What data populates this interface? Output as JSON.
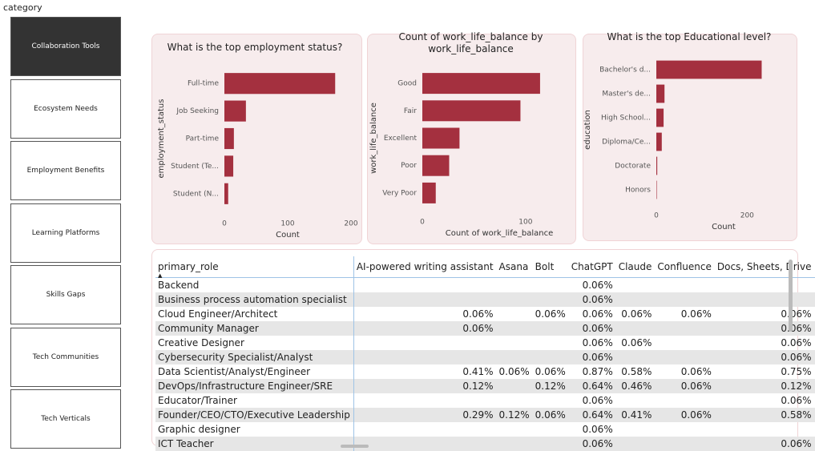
{
  "slicer": {
    "title": "category",
    "items": [
      "Collaboration Tools",
      "Ecosystem Needs",
      "Employment Benefits",
      "Learning Platforms",
      "Skills Gaps",
      "Tech Communities",
      "Tech Verticals"
    ],
    "selected": 0
  },
  "chart_data": [
    {
      "type": "bar",
      "orientation": "horizontal",
      "title": "What is the top employment status?",
      "x_label": "Count",
      "y_label": "employment_status",
      "categories": [
        "Full-time",
        "Job Seeking",
        "Part-time",
        "Student (Te...",
        "Student (N..."
      ],
      "values": [
        175,
        34,
        15,
        14,
        6
      ],
      "color": "#a4303f",
      "xlim": [
        0,
        200
      ],
      "xticks": [
        0,
        100,
        200
      ]
    },
    {
      "type": "bar",
      "orientation": "horizontal",
      "title": "Count of work_life_balance by work_life_balance",
      "x_label": "Count of work_life_balance",
      "y_label": "work_life_balance",
      "categories": [
        "Good",
        "Fair",
        "Excellent",
        "Poor",
        "Very Poor"
      ],
      "values": [
        114,
        95,
        36,
        26,
        13
      ],
      "color": "#a4303f",
      "xlim": [
        0,
        135
      ],
      "xticks": [
        0,
        100
      ]
    },
    {
      "type": "bar",
      "orientation": "horizontal",
      "title": "What is the top Educational level?",
      "x_label": "Count",
      "y_label": "education",
      "categories": [
        "Bachelor's d...",
        "Master's de...",
        "High School...",
        "Diploma/Ce...",
        "Doctorate",
        "Honors"
      ],
      "values": [
        232,
        18,
        16,
        12,
        2,
        1
      ],
      "color": "#a4303f",
      "xlim": [
        0,
        300
      ],
      "xticks": [
        0,
        200
      ]
    }
  ],
  "table": {
    "columns": [
      "primary_role",
      "AI-powered writing assistant",
      "Asana",
      "Bolt",
      "ChatGPT",
      "Claude",
      "Confluence",
      "Docs, Sheets, Drive"
    ],
    "rows": [
      [
        "Backend",
        null,
        null,
        null,
        "0.06%",
        null,
        null,
        null
      ],
      [
        "Business process automation specialist",
        null,
        null,
        null,
        "0.06%",
        null,
        null,
        null
      ],
      [
        "Cloud Engineer/Architect",
        "0.06%",
        null,
        "0.06%",
        "0.06%",
        "0.06%",
        "0.06%",
        "0.06%"
      ],
      [
        "Community Manager",
        "0.06%",
        null,
        null,
        "0.06%",
        null,
        null,
        "0.06%"
      ],
      [
        "Creative Designer",
        null,
        null,
        null,
        "0.06%",
        "0.06%",
        null,
        "0.06%"
      ],
      [
        "Cybersecurity Specialist/Analyst",
        null,
        null,
        null,
        "0.06%",
        null,
        null,
        "0.06%"
      ],
      [
        "Data Scientist/Analyst/Engineer",
        "0.41%",
        "0.06%",
        "0.06%",
        "0.87%",
        "0.58%",
        "0.06%",
        "0.75%"
      ],
      [
        "DevOps/Infrastructure Engineer/SRE",
        "0.12%",
        null,
        "0.12%",
        "0.64%",
        "0.46%",
        "0.06%",
        "0.12%"
      ],
      [
        "Educator/Trainer",
        null,
        null,
        null,
        "0.06%",
        null,
        null,
        "0.06%"
      ],
      [
        "Founder/CEO/CTO/Executive Leadership",
        "0.29%",
        "0.12%",
        "0.06%",
        "0.64%",
        "0.41%",
        "0.06%",
        "0.58%"
      ],
      [
        "Graphic designer",
        null,
        null,
        null,
        "0.06%",
        null,
        null,
        null
      ],
      [
        "ICT Teacher",
        null,
        null,
        null,
        "0.06%",
        null,
        null,
        "0.06%"
      ]
    ]
  }
}
